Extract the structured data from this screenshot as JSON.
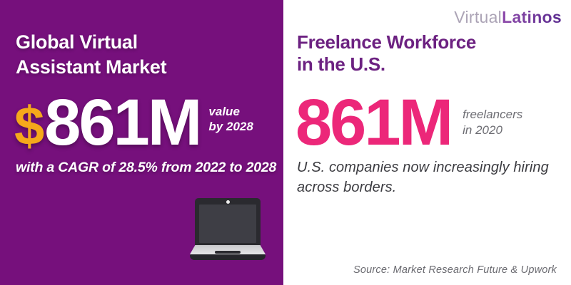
{
  "brand": {
    "logo_part1": "Virtual",
    "logo_part2": "Latinos"
  },
  "left_panel": {
    "title_line1": "Global Virtual",
    "title_line2": "Assistant Market",
    "stat_currency": "$",
    "stat_value": "861M",
    "qualifier_line1": "value",
    "qualifier_line2": "by 2028",
    "subtext": "with a CAGR of 28.5% from 2022 to 2028",
    "colors": {
      "background": "#76107C",
      "currency_gold": "#F5A81B",
      "text": "#FFFFFF"
    }
  },
  "right_panel": {
    "title_line1": "Freelance Workforce",
    "title_line2": "in the U.S.",
    "stat_value": "861M",
    "qualifier_line1": "freelancers",
    "qualifier_line2": "in 2020",
    "subtext_line1": "U.S. companies now increasingly hiring",
    "subtext_line2": "across borders.",
    "source": "Source: Market Research Future & Upwork",
    "colors": {
      "background": "#FFFFFF",
      "title_purple": "#6C2181",
      "stat_pink": "#EC2779"
    }
  }
}
